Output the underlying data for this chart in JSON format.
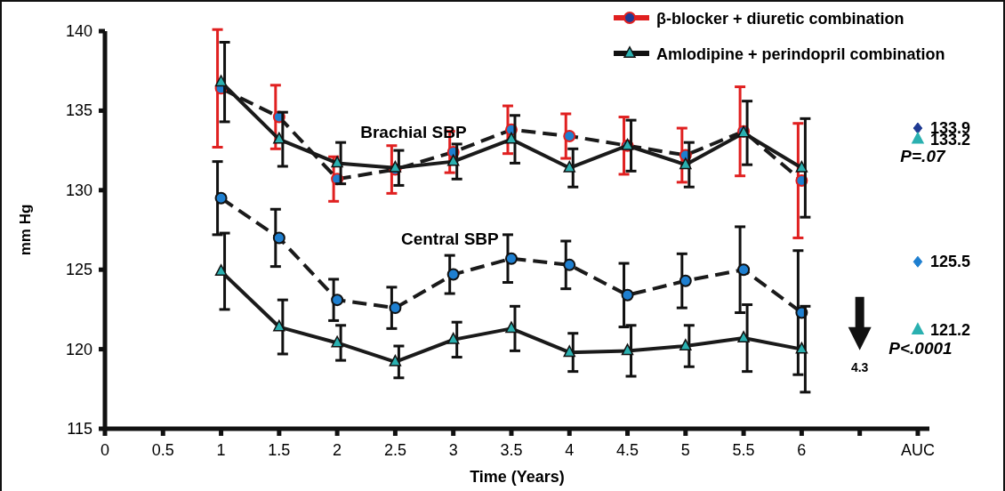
{
  "chart_data": {
    "type": "line",
    "ylabel": "mm Hg",
    "xlabel": "Time (Years)",
    "xlim": [
      0,
      7.1
    ],
    "xticks": [
      0,
      {
        "value": 0.5,
        "label": "0.5"
      },
      1,
      {
        "value": 1.5,
        "label": "1.5"
      },
      2,
      {
        "value": 2.5,
        "label": "2.5"
      },
      3,
      {
        "value": 3.5,
        "label": "3.5"
      },
      4,
      {
        "value": 4.5,
        "label": "4.5"
      },
      5,
      {
        "value": 5.5,
        "label": "5.5"
      },
      6,
      {
        "value": 6.5,
        "label": null
      },
      {
        "value": 7,
        "label": "AUC"
      }
    ],
    "ylim": [
      115,
      140
    ],
    "yticks": [
      115,
      120,
      125,
      130,
      135,
      140
    ],
    "grid": false,
    "legend": "top right",
    "series": [
      {
        "name": "β-blocker + diuretic combination",
        "color": "#e02020",
        "marker": "circle",
        "line_style": "dashed",
        "x": [
          1,
          1.5,
          2,
          2.5,
          3,
          3.5,
          4,
          4.5,
          5,
          5.5,
          6
        ],
        "values": [
          136.4,
          134.6,
          130.7,
          131.3,
          132.4,
          133.8,
          133.4,
          132.8,
          132.2,
          133.7,
          130.6
        ],
        "errors": [
          3.7,
          2.0,
          1.4,
          1.5,
          1.3,
          1.5,
          1.4,
          1.8,
          1.7,
          2.8,
          3.6
        ]
      },
      {
        "name": "Amlodipine + perindopril combination",
        "color": "#111111",
        "marker": "triangle",
        "line_style": "solid",
        "x": [
          1,
          1.5,
          2,
          2.5,
          3,
          3.5,
          4,
          4.5,
          5,
          5.5,
          6
        ],
        "values": [
          136.8,
          133.2,
          131.7,
          131.4,
          131.8,
          133.2,
          131.4,
          132.8,
          131.6,
          133.6,
          131.4
        ],
        "errors": [
          2.5,
          1.7,
          1.3,
          1.1,
          1.1,
          1.5,
          1.2,
          1.6,
          1.4,
          2.0,
          3.1
        ]
      },
      {
        "color": "#111111",
        "marker": "circle",
        "line_style": "dashed",
        "x": [
          1,
          1.5,
          2,
          2.5,
          3,
          3.5,
          4,
          4.5,
          5,
          5.5,
          6
        ],
        "values": [
          129.5,
          127.0,
          123.1,
          122.6,
          124.7,
          125.7,
          125.3,
          123.4,
          124.3,
          125.0,
          122.3
        ],
        "errors": [
          2.3,
          1.8,
          1.3,
          1.3,
          1.2,
          1.5,
          1.5,
          2.0,
          1.7,
          2.7,
          3.9
        ]
      },
      {
        "color": "#111111",
        "marker": "triangle",
        "line_style": "solid",
        "x": [
          1,
          1.5,
          2,
          2.5,
          3,
          3.5,
          4,
          4.5,
          5,
          5.5,
          6
        ],
        "values": [
          124.9,
          121.4,
          120.4,
          119.2,
          120.6,
          121.3,
          119.8,
          119.9,
          120.2,
          120.7,
          120.0
        ],
        "errors": [
          2.4,
          1.7,
          1.1,
          1.0,
          1.1,
          1.4,
          1.2,
          1.6,
          1.3,
          2.1,
          2.7
        ]
      },
      {
        "type": "scatter",
        "color": "#1f3a93",
        "marker": "diamond",
        "x": [
          7
        ],
        "values": [
          133.9
        ],
        "value_labels": [
          "133.9"
        ]
      },
      {
        "type": "scatter",
        "color": "#2ab0b0",
        "marker": "triangle",
        "x": [
          7
        ],
        "values": [
          133.2
        ],
        "value_labels": [
          "133.2"
        ]
      },
      {
        "type": "scatter",
        "color": "#1e7fd0",
        "marker": "diamond",
        "x": [
          7
        ],
        "values": [
          125.5
        ],
        "value_labels": [
          "125.5"
        ]
      },
      {
        "type": "scatter",
        "color": "#2ab0b0",
        "marker": "triangle",
        "x": [
          7
        ],
        "values": [
          121.2
        ],
        "value_labels": [
          "121.2"
        ]
      }
    ],
    "annotations": [
      "Brachial SBP",
      "Central SBP",
      "P=.07",
      "P<.0001",
      "4.3"
    ]
  }
}
